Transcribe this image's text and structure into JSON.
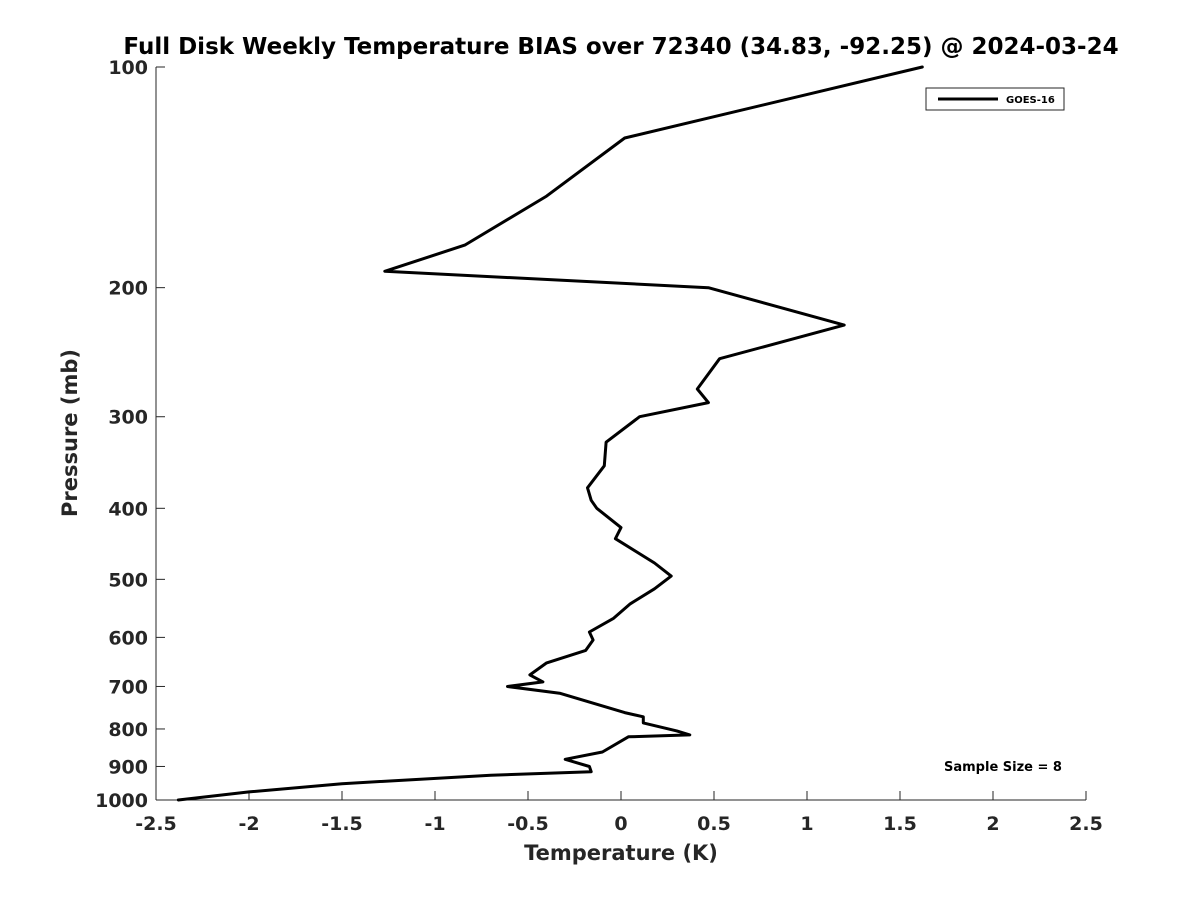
{
  "chart_data": {
    "type": "line",
    "title": "Full Disk Weekly Temperature BIAS over 72340 (34.83, -92.25) @ 2024-03-24",
    "xlabel": "Temperature (K)",
    "ylabel": "Pressure (mb)",
    "xlim": [
      -2.5,
      2.5
    ],
    "ylim": [
      1000,
      100
    ],
    "yscale": "log",
    "ydirection": "reversed",
    "grid": false,
    "legend_position": "top-right",
    "x_ticks": [
      -2.5,
      -2,
      -1.5,
      -1,
      -0.5,
      0,
      0.5,
      1,
      1.5,
      2,
      2.5
    ],
    "x_tick_labels": [
      "-2.5",
      "-2",
      "-1.5",
      "-1",
      "-0.5",
      "0",
      "0.5",
      "1",
      "1.5",
      "2",
      "2.5"
    ],
    "y_ticks": [
      100,
      200,
      300,
      400,
      500,
      600,
      700,
      800,
      900,
      1000
    ],
    "y_tick_labels": [
      "100",
      "200",
      "300",
      "400",
      "500",
      "600",
      "700",
      "800",
      "900",
      "1000"
    ],
    "series": [
      {
        "name": "GOES-16",
        "color": "#000000",
        "points": [
          [
            1.62,
            100
          ],
          [
            0.02,
            125
          ],
          [
            -0.4,
            150
          ],
          [
            -0.84,
            175
          ],
          [
            -1.27,
            190
          ],
          [
            0.47,
            200
          ],
          [
            1.2,
            225
          ],
          [
            0.53,
            250
          ],
          [
            0.41,
            275
          ],
          [
            0.47,
            287
          ],
          [
            0.1,
            300
          ],
          [
            -0.08,
            325
          ],
          [
            -0.09,
            350
          ],
          [
            -0.18,
            375
          ],
          [
            -0.16,
            390
          ],
          [
            -0.13,
            400
          ],
          [
            0.0,
            425
          ],
          [
            -0.03,
            440
          ],
          [
            0.18,
            475
          ],
          [
            0.27,
            495
          ],
          [
            0.18,
            515
          ],
          [
            0.05,
            540
          ],
          [
            -0.04,
            565
          ],
          [
            -0.17,
            590
          ],
          [
            -0.15,
            605
          ],
          [
            -0.19,
            625
          ],
          [
            -0.4,
            650
          ],
          [
            -0.49,
            675
          ],
          [
            -0.42,
            690
          ],
          [
            -0.61,
            700
          ],
          [
            -0.33,
            715
          ],
          [
            0.02,
            760
          ],
          [
            0.12,
            770
          ],
          [
            0.12,
            785
          ],
          [
            0.3,
            805
          ],
          [
            0.37,
            815
          ],
          [
            0.04,
            820
          ],
          [
            -0.1,
            860
          ],
          [
            -0.3,
            880
          ],
          [
            -0.17,
            900
          ],
          [
            -0.16,
            915
          ],
          [
            -0.7,
            925
          ],
          [
            -1.5,
            950
          ],
          [
            -2.0,
            975
          ],
          [
            -2.38,
            1000
          ]
        ]
      }
    ],
    "annotation": "Sample Size = 8"
  }
}
